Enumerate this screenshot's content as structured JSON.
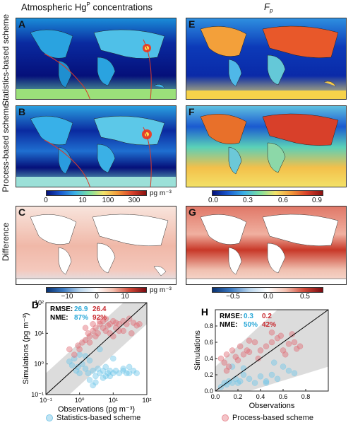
{
  "headers": {
    "left_html_parts": [
      "Atmospheric Hg",
      "P",
      " concentrations"
    ],
    "right_main": "F",
    "right_sub": "p"
  },
  "row_labels": {
    "row1": "Statistics-based scheme",
    "row2": "Process-based scheme",
    "row3": "Difference"
  },
  "panels": {
    "A": "A",
    "B": "B",
    "C": "C",
    "D": "D",
    "E": "E",
    "F": "F",
    "G": "G",
    "H": "H"
  },
  "colorbars": {
    "conc": {
      "ticks": [
        "0",
        "10",
        "100",
        "300"
      ],
      "unit": "pg m⁻³"
    },
    "fp": {
      "ticks": [
        "0.0",
        "0.3",
        "0.6",
        "0.9"
      ]
    },
    "diff_conc": {
      "ticks": [
        "−10",
        "0",
        "10"
      ],
      "unit": "pg m⁻³"
    },
    "diff_fp": {
      "ticks": [
        "−0.5",
        "0.0",
        "0.5"
      ]
    }
  },
  "chart_data": [
    {
      "panel": "D",
      "type": "scatter",
      "xlabel": "Observations (pg m⁻³)",
      "ylabel": "Simulations (pg m⁻³)",
      "xscale": "log",
      "yscale": "log",
      "xlim": [
        0.1,
        100
      ],
      "ylim": [
        0.1,
        100
      ],
      "xticks": [
        "10⁻¹",
        "10⁰",
        "10¹",
        "10²"
      ],
      "yticks": [
        "10⁻¹",
        "10⁰",
        "10¹",
        "10²"
      ],
      "stats": {
        "rmse_label": "RMSE:",
        "rmse_values": [
          "26.9",
          "26.4"
        ],
        "nme_label": "NME:",
        "nme_values": [
          "87%",
          "92%"
        ]
      },
      "series": [
        {
          "name": "Statistics-based scheme",
          "color": "#6ec6e8",
          "x": [
            0.5,
            0.6,
            0.7,
            0.9,
            1,
            1.2,
            1.5,
            1.8,
            2,
            2.5,
            3,
            3.5,
            4,
            5,
            6,
            7,
            8,
            10,
            12,
            15,
            20,
            25,
            30,
            40,
            50,
            2,
            3,
            5,
            8,
            1,
            1.5,
            0.8,
            4,
            6,
            10,
            20,
            30,
            2.5
          ],
          "y": [
            1.2,
            0.9,
            1.5,
            0.8,
            0.5,
            1.0,
            0.7,
            0.5,
            1.3,
            0.6,
            0.4,
            0.7,
            0.5,
            0.6,
            0.4,
            0.5,
            0.6,
            0.5,
            0.6,
            0.5,
            0.6,
            0.5,
            0.5,
            0.6,
            0.5,
            0.3,
            0.25,
            0.35,
            0.4,
            2.0,
            1.8,
            0.6,
            3.0,
            0.8,
            1.5,
            0.7,
            0.8,
            0.2
          ]
        },
        {
          "name": "Process-based scheme",
          "color": "#e06b74",
          "x": [
            0.5,
            0.7,
            0.9,
            1,
            1.2,
            1.5,
            1.8,
            2,
            2.5,
            3,
            3.5,
            4,
            5,
            6,
            7,
            8,
            10,
            12,
            15,
            20,
            25,
            30,
            40,
            50,
            60,
            2,
            3,
            4,
            6,
            8,
            10,
            15,
            1.5,
            2.5,
            5,
            12,
            20,
            35
          ],
          "y": [
            3,
            2,
            4,
            3,
            5,
            6,
            10,
            8,
            12,
            15,
            10,
            20,
            15,
            12,
            18,
            20,
            25,
            15,
            20,
            25,
            20,
            30,
            22,
            18,
            20,
            5,
            8,
            25,
            30,
            10,
            8,
            12,
            15,
            20,
            25,
            22,
            12,
            10
          ]
        }
      ],
      "diagonal": "1:1"
    },
    {
      "panel": "H",
      "type": "scatter",
      "xlabel": "Observations",
      "ylabel": "Simulations",
      "xlim": [
        0,
        1.0
      ],
      "ylim": [
        0,
        1.0
      ],
      "xticks": [
        "0.0",
        "0.2",
        "0.4",
        "0.6",
        "0.8"
      ],
      "yticks": [
        "0.0",
        "0.2",
        "0.4",
        "0.6",
        "0.8"
      ],
      "stats": {
        "rmse_label": "RMSE:",
        "rmse_values": [
          "0.3",
          "0.2"
        ],
        "nme_label": "NME:",
        "nme_values": [
          "50%",
          "42%"
        ]
      },
      "series": [
        {
          "name": "Statistics-based scheme",
          "color": "#6ec6e8",
          "x": [
            0.05,
            0.08,
            0.1,
            0.12,
            0.15,
            0.18,
            0.2,
            0.22,
            0.25,
            0.3,
            0.35,
            0.4,
            0.45,
            0.5,
            0.55,
            0.6,
            0.65,
            0.7,
            0.15,
            0.25,
            0.45,
            0.52
          ],
          "y": [
            0.05,
            0.1,
            0.08,
            0.12,
            0.1,
            0.15,
            0.1,
            0.12,
            0.2,
            0.15,
            0.1,
            0.18,
            0.12,
            0.2,
            0.15,
            0.3,
            0.25,
            0.22,
            0.3,
            0.28,
            0.1,
            0.35
          ]
        },
        {
          "name": "Process-based scheme",
          "color": "#e06b74",
          "x": [
            0.05,
            0.08,
            0.1,
            0.12,
            0.15,
            0.18,
            0.2,
            0.22,
            0.25,
            0.28,
            0.3,
            0.35,
            0.4,
            0.45,
            0.5,
            0.55,
            0.6,
            0.62,
            0.65,
            0.7,
            0.72,
            0.75,
            0.1,
            0.3,
            0.5,
            0.38,
            0.58,
            0.68
          ],
          "y": [
            0.4,
            0.35,
            0.45,
            0.3,
            0.5,
            0.42,
            0.38,
            0.55,
            0.45,
            0.5,
            0.48,
            0.6,
            0.5,
            0.55,
            0.6,
            0.65,
            0.5,
            0.45,
            0.58,
            0.6,
            0.52,
            0.55,
            0.25,
            0.62,
            0.72,
            0.4,
            0.68,
            0.7
          ]
        }
      ],
      "diagonal": "1:1"
    }
  ],
  "legend": {
    "stat_label": "Statistics-based scheme",
    "proc_label": "Process-based scheme"
  }
}
